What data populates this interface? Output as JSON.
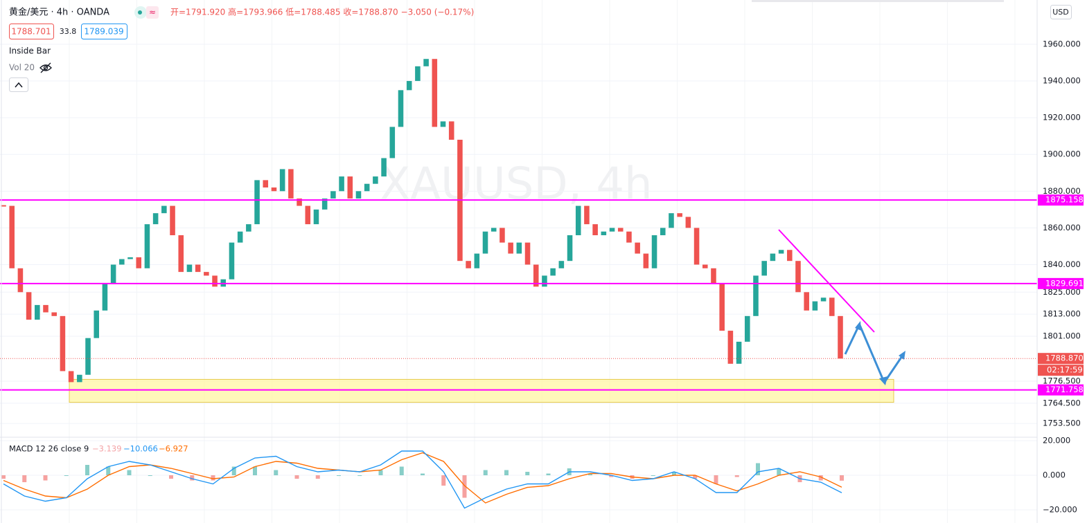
{
  "header": {
    "symbol": "黄金/美元 · 4h · OANDA",
    "ohlc": "开=1791.920 高=1793.966 低=1788.485 收=1788.870 −3.050 (−0.17%)",
    "bid": "1788.701",
    "spread": "33.8",
    "ask": "1789.039",
    "indicators": [
      "Inside Bar",
      "Vol 20"
    ]
  },
  "watermark": "XAUUSD, 4h",
  "chart_data": [
    {
      "type": "candlestick",
      "currency": "USD",
      "colors": {
        "up": "#26a69a",
        "down": "#ef5350",
        "level": "#ff00ff",
        "zone": "#fff59d"
      },
      "close": [
        1872,
        1838,
        1825,
        1810,
        1818,
        1814,
        1812,
        1782,
        1776,
        1780,
        1800,
        1815,
        1830,
        1840,
        1843,
        1844,
        1838,
        1862,
        1868,
        1872,
        1856,
        1836,
        1840,
        1836,
        1834,
        1828,
        1832,
        1852,
        1858,
        1862,
        1886,
        1882,
        1880,
        1892,
        1876,
        1872,
        1862,
        1870,
        1876,
        1880,
        1888,
        1876,
        1880,
        1884,
        1888,
        1898,
        1915,
        1935,
        1940,
        1948,
        1952,
        1915,
        1918,
        1908,
        1842,
        1838,
        1846,
        1858,
        1860,
        1852,
        1846,
        1852,
        1840,
        1828,
        1834,
        1838,
        1842,
        1856,
        1872,
        1862,
        1856,
        1858,
        1860,
        1858,
        1852,
        1846,
        1838,
        1856,
        1860,
        1868,
        1866,
        1860,
        1840,
        1838,
        1830,
        1804,
        1786,
        1798,
        1812,
        1834,
        1842,
        1846,
        1848,
        1842,
        1825,
        1815,
        1820,
        1822,
        1812,
        1788.87
      ],
      "ylim": [
        1746,
        1984.1
      ],
      "yticks": [
        {
          "value": 1960,
          "label": "1960.000"
        },
        {
          "value": 1940,
          "label": "1940.000"
        },
        {
          "value": 1920,
          "label": "1920.000"
        },
        {
          "value": 1900,
          "label": "1900.000"
        },
        {
          "value": 1880,
          "label": "1880.000"
        },
        {
          "value": 1860,
          "label": "1860.000"
        },
        {
          "value": 1840,
          "label": "1840.000"
        },
        {
          "value": 1825,
          "label": "1825.000"
        },
        {
          "value": 1813,
          "label": "1813.000"
        },
        {
          "value": 1801,
          "label": "1801.000"
        },
        {
          "value": 1776.5,
          "label": "1776.500"
        },
        {
          "value": 1764.5,
          "label": "1764.500"
        },
        {
          "value": 1753.5,
          "label": "1753.500"
        }
      ],
      "levels": [
        {
          "value": 1875.158,
          "label": "1875.158"
        },
        {
          "value": 1829.691,
          "label": "1829.691"
        },
        {
          "value": 1771.758,
          "label": "1771.758"
        }
      ],
      "zone": [
        1765,
        1777.5
      ],
      "current": {
        "value": 1788.87,
        "label": "1788.870",
        "countdown": "02:17:59"
      }
    },
    {
      "type": "macd",
      "title": "MACD 12 26 close 9",
      "legend": {
        "histogram": "−3.139",
        "macd": "−10.066",
        "signal": "−6.927"
      },
      "colors": {
        "macd": "#2196f3",
        "signal": "#ff6d00",
        "hist_up": "#26a69a",
        "hist_down": "#ef5350"
      },
      "macd": [
        -5,
        -12,
        -15,
        -13,
        -2,
        5,
        8,
        6,
        2,
        -2,
        -5,
        4,
        10,
        11,
        5,
        2,
        3,
        2,
        6,
        14,
        14,
        2,
        -19,
        -13,
        -8,
        -5,
        -5,
        2,
        2,
        0,
        -3,
        -2,
        2,
        -2,
        -10,
        -10,
        2,
        4,
        -2,
        -4,
        -10.066
      ],
      "signal": [
        -3,
        -8,
        -12,
        -13,
        -8,
        0,
        5,
        6,
        4,
        1,
        -2,
        -1,
        5,
        8,
        7,
        4,
        3,
        2,
        3,
        9,
        13,
        8,
        -6,
        -16,
        -11,
        -7,
        -6,
        -2,
        1,
        1,
        -1,
        -2,
        0,
        0,
        -5,
        -9,
        -5,
        0,
        2,
        -1,
        -6.927
      ],
      "histogram": [
        -2,
        -4,
        -3,
        0,
        6,
        5,
        3,
        0,
        -2,
        -3,
        -3,
        5,
        5,
        3,
        -2,
        -2,
        0,
        0,
        3,
        5,
        1,
        -6,
        -13,
        3,
        3,
        2,
        1,
        4,
        1,
        -1,
        -2,
        0,
        2,
        -2,
        -5,
        -1,
        7,
        4,
        -4,
        -3,
        -3.139
      ],
      "ylim": [
        -27.6,
        22
      ],
      "yticks": [
        {
          "value": 20,
          "label": "20.000"
        },
        {
          "value": 0,
          "label": "0.000"
        },
        {
          "value": -20,
          "label": "−20.000"
        }
      ]
    }
  ]
}
